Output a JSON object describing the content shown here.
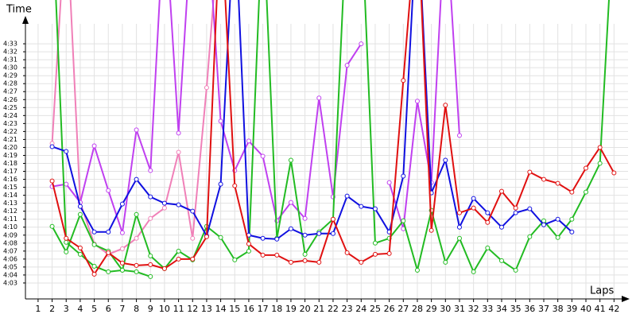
{
  "chart_data": {
    "type": "line",
    "y_label": "Time",
    "x_label": "Laps",
    "x": [
      1,
      2,
      3,
      4,
      5,
      6,
      7,
      8,
      9,
      10,
      11,
      12,
      13,
      14,
      15,
      16,
      17,
      18,
      19,
      20,
      21,
      22,
      23,
      24,
      25,
      26,
      27,
      28,
      29,
      30,
      31,
      32,
      33,
      34,
      35,
      36,
      37,
      38,
      39,
      40,
      41,
      42
    ],
    "xlim": [
      0.1,
      43
    ],
    "xticks": [
      1,
      2,
      3,
      4,
      5,
      6,
      7,
      8,
      9,
      10,
      11,
      12,
      13,
      14,
      15,
      16,
      17,
      18,
      19,
      20,
      21,
      22,
      23,
      24,
      25,
      26,
      27,
      28,
      29,
      30,
      31,
      32,
      33,
      34,
      35,
      36,
      37,
      38,
      39,
      40,
      41,
      42
    ],
    "ylim": [
      241,
      275.5
    ],
    "yticks": [
      {
        "value": 243,
        "label": "4:03"
      },
      {
        "value": 244,
        "label": "4:04"
      },
      {
        "value": 245,
        "label": "4:05"
      },
      {
        "value": 246,
        "label": "4:06"
      },
      {
        "value": 247,
        "label": "4:07"
      },
      {
        "value": 248,
        "label": "4:08"
      },
      {
        "value": 249,
        "label": "4:09"
      },
      {
        "value": 250,
        "label": "4:10"
      },
      {
        "value": 251,
        "label": "4:11"
      },
      {
        "value": 252,
        "label": "4:12"
      },
      {
        "value": 253,
        "label": "4:13"
      },
      {
        "value": 254,
        "label": "4:14"
      },
      {
        "value": 255,
        "label": "4:15"
      },
      {
        "value": 256,
        "label": "4:16"
      },
      {
        "value": 257,
        "label": "4:17"
      },
      {
        "value": 258,
        "label": "4:18"
      },
      {
        "value": 259,
        "label": "4:19"
      },
      {
        "value": 260,
        "label": "4:20"
      },
      {
        "value": 261,
        "label": "4:21"
      },
      {
        "value": 262,
        "label": "4:22"
      },
      {
        "value": 263,
        "label": "4:23"
      },
      {
        "value": 264,
        "label": "4:24"
      },
      {
        "value": 265,
        "label": "4:25"
      },
      {
        "value": 266,
        "label": "4:26"
      },
      {
        "value": 267,
        "label": "4:27"
      },
      {
        "value": 268,
        "label": "4:28"
      },
      {
        "value": 269,
        "label": "4:29"
      },
      {
        "value": 270,
        "label": "4:30"
      },
      {
        "value": 271,
        "label": "4:31"
      },
      {
        "value": 272,
        "label": "4:32"
      },
      {
        "value": 273,
        "label": "4:33"
      }
    ],
    "grid": true,
    "series": [
      {
        "color": "#f080b8",
        "values": [
          null,
          260.5,
          290,
          253.1,
          247.9,
          246.6,
          247.3,
          248.6,
          251.1,
          252.4,
          259.4,
          248.6,
          267.5,
          290,
          null,
          null,
          null,
          null,
          null,
          null,
          null,
          null,
          null,
          null,
          null,
          null,
          null,
          null,
          null,
          null,
          null,
          null,
          null,
          null,
          null,
          null,
          null,
          null,
          null,
          null,
          null,
          null
        ]
      },
      {
        "color": "#c040f0",
        "values": [
          null,
          255.1,
          255.4,
          253.1,
          260.2,
          254.6,
          249.3,
          262.2,
          257.1,
          290,
          261.8,
          290,
          290,
          263.3,
          257.1,
          260.8,
          258.9,
          250.8,
          253.1,
          251.1,
          266.2,
          253.8,
          270.3,
          273,
          null,
          255.6,
          249.8,
          265.8,
          255.6,
          290,
          261.5,
          null,
          null,
          null,
          null,
          null,
          null,
          null,
          null,
          null,
          null,
          null
        ]
      },
      {
        "color": "#22bb22",
        "values": [
          null,
          290,
          248.1,
          246.6,
          245.1,
          244.4,
          244.6,
          244.4,
          243.8,
          null,
          null,
          null,
          null,
          null,
          null,
          null,
          null,
          null,
          null,
          null,
          null,
          null,
          null,
          null,
          null,
          null,
          null,
          null,
          null,
          null,
          null,
          null,
          null,
          null,
          null,
          null,
          null,
          null,
          null,
          null,
          null,
          null
        ]
      },
      {
        "color": "#22bb22",
        "values": [
          null,
          250.1,
          246.9,
          251.6,
          247.8,
          247,
          244.6,
          251.6,
          246.4,
          244.8,
          247,
          245.9,
          250.1,
          248.7,
          245.9,
          247,
          290,
          248.6,
          258.4,
          246.6,
          249.4,
          251,
          290,
          290,
          248,
          248.6,
          250.8,
          244.6,
          252.1,
          245.6,
          248.6,
          244.4,
          247.4,
          245.8,
          244.6,
          248.8,
          250.8,
          248.7,
          251,
          254.4,
          258,
          290
        ]
      },
      {
        "color": "#1010e0",
        "values": [
          null,
          260.1,
          259.5,
          252.6,
          249.4,
          249.4,
          252.9,
          256,
          253.8,
          253,
          252.8,
          252,
          248.9,
          255.4,
          290,
          249,
          248.6,
          248.5,
          249.8,
          249,
          249.2,
          249.2,
          253.9,
          252.6,
          252.3,
          249.4,
          256.4,
          290,
          254.3,
          258.4,
          250,
          253.6,
          251.8,
          250,
          251.8,
          252.3,
          250.3,
          251,
          249.4,
          null,
          null,
          null
        ]
      },
      {
        "color": "#e01010",
        "values": [
          null,
          255.8,
          248.6,
          247.4,
          244.1,
          246.8,
          245.5,
          245.2,
          245.3,
          244.8,
          246,
          246,
          248.8,
          290,
          255.2,
          247.9,
          246.5,
          246.5,
          245.6,
          245.8,
          245.6,
          251,
          246.8,
          245.6,
          246.6,
          246.7,
          268.4,
          290,
          249.6,
          265.3,
          251.8,
          252.4,
          250.6,
          254.5,
          252.4,
          256.9,
          256,
          255.5,
          254.4,
          257.4,
          260,
          256.8
        ]
      }
    ]
  }
}
